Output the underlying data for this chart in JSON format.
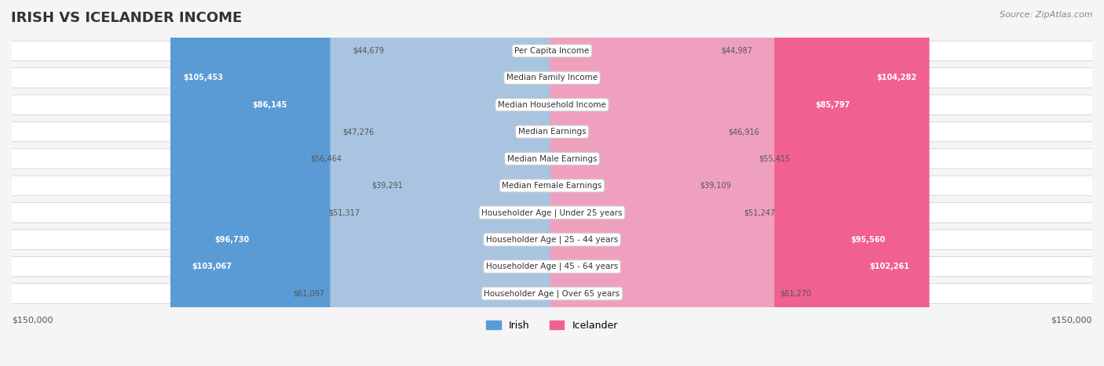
{
  "title": "IRISH VS ICELANDER INCOME",
  "source": "Source: ZipAtlas.com",
  "categories": [
    "Per Capita Income",
    "Median Family Income",
    "Median Household Income",
    "Median Earnings",
    "Median Male Earnings",
    "Median Female Earnings",
    "Householder Age | Under 25 years",
    "Householder Age | 25 - 44 years",
    "Householder Age | 45 - 64 years",
    "Householder Age | Over 65 years"
  ],
  "irish_values": [
    44679,
    105453,
    86145,
    47276,
    56464,
    39291,
    51317,
    96730,
    103067,
    61097
  ],
  "icelander_values": [
    44987,
    104282,
    85797,
    46916,
    55415,
    39109,
    51247,
    95560,
    102261,
    61270
  ],
  "irish_labels": [
    "$44,679",
    "$105,453",
    "$86,145",
    "$47,276",
    "$56,464",
    "$39,291",
    "$51,317",
    "$96,730",
    "$103,067",
    "$61,097"
  ],
  "icelander_labels": [
    "$44,987",
    "$104,282",
    "$85,797",
    "$46,916",
    "$55,415",
    "$39,109",
    "$51,247",
    "$95,560",
    "$102,261",
    "$61,270"
  ],
  "irish_color_light": "#a8c4e0",
  "irish_color_dark": "#5b9bd5",
  "icelander_color_light": "#f0a0bf",
  "icelander_color_dark": "#f06090",
  "irish_threshold": 80000,
  "icelander_threshold": 80000,
  "max_value": 150000,
  "bg_color": "#f5f5f5",
  "bar_bg_color": "#e8e8e8",
  "row_bg_color": "#ffffff",
  "row_alt_bg": "#f0f0f0"
}
